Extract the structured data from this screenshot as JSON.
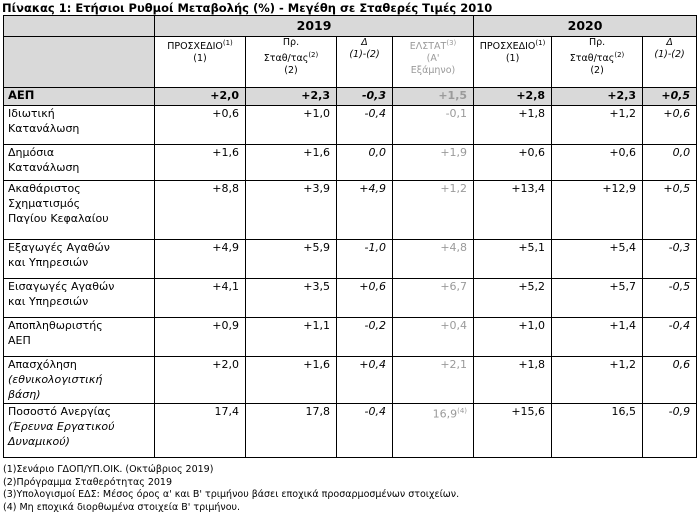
{
  "title": "Πίνακας 1: Ετήσιοι Ρυθμοί Μεταβολής (%) - Μεγέθη σε Σταθερές Τιμές 2010",
  "years": [
    "2019",
    "2020"
  ],
  "subheaders": {
    "plan_2019": {
      "main": "ΠΡΟΣΧΕΔΙΟ",
      "sup": "(1)",
      "line2": "(1)"
    },
    "stab_2019": {
      "line1": "Πρ.",
      "main": "Σταθ/τας",
      "sup": "(2)",
      "line3": "(2)"
    },
    "delta_2019": {
      "line1": "Δ",
      "line2": "(1)-(2)"
    },
    "elstat_2019": {
      "main": "ΕΛΣΤΑΤ",
      "sup": "(3)",
      "line2": "(Α'",
      "line3": "Εξάμηνο)"
    },
    "plan_2020": {
      "main": "ΠΡΟΣΧΕΔΙΟ",
      "sup": "(1)",
      "line2": "(1)"
    },
    "stab_2020": {
      "line1": "Πρ.",
      "main": "Σταθ/τας",
      "sup": "(2)",
      "line3": "(2)"
    },
    "delta_2020": {
      "line1": "Δ",
      "line2": "(1)-(2)"
    }
  },
  "rows": [
    {
      "label": [
        "ΑΕΠ"
      ],
      "values": [
        "+2,0",
        "+2,3",
        "-0,3",
        "+1,5",
        "+2,8",
        "+2,3",
        "+0,5"
      ]
    },
    {
      "label": [
        "Ιδιωτική",
        "Κατανάλωση"
      ],
      "values": [
        "+0,6",
        "+1,0",
        "-0,4",
        "-0,1",
        "+1,8",
        "+1,2",
        "+0,6"
      ]
    },
    {
      "label": [
        "Δημόσια",
        "Κατανάλωση"
      ],
      "values": [
        "+1,6",
        "+1,6",
        "0,0",
        "+1,9",
        "+0,6",
        "+0,6",
        "0,0"
      ]
    },
    {
      "label": [
        "Ακαθάριστος",
        "Σχηματισμός",
        "Παγίου Κεφαλαίου"
      ],
      "values": [
        "+8,8",
        "+3,9",
        "+4,9",
        "+1,2",
        "+13,4",
        "+12,9",
        "+0,5"
      ]
    },
    {
      "label": [
        "Εξαγωγές Αγαθών",
        "και Υπηρεσιών"
      ],
      "values": [
        "+4,9",
        "+5,9",
        "-1,0",
        "+4,8",
        "+5,1",
        "+5,4",
        "-0,3"
      ]
    },
    {
      "label": [
        "Εισαγωγές Αγαθών",
        "και Υπηρεσιών"
      ],
      "values": [
        "+4,1",
        "+3,5",
        "+0,6",
        "+6,7",
        "+5,2",
        "+5,7",
        "-0,5"
      ]
    },
    {
      "label": [
        "Αποπληθωριστής",
        "ΑΕΠ"
      ],
      "values": [
        "+0,9",
        "+1,1",
        "-0,2",
        "+0,4",
        "+1,0",
        "+1,4",
        "-0,4"
      ]
    },
    {
      "label": [
        "Απασχόληση"
      ],
      "label_sub": [
        "(εθνικολογιστική",
        "βάση)"
      ],
      "values": [
        "+2,0",
        "+1,6",
        "+0,4",
        "+2,1",
        "+1,8",
        "+1,2",
        "0,6"
      ]
    },
    {
      "label": [
        "Ποσοστό Ανεργίας"
      ],
      "label_sub": [
        "(Έρευνα Εργατικού",
        "Δυναμικού)"
      ],
      "values": [
        "17,4",
        "17,8",
        "-0,4",
        "16,9",
        "+15,6",
        "16,5",
        "-0,9"
      ],
      "elstat_sup": "(4)"
    }
  ],
  "footnotes": [
    "(1)Σενάριο ΓΔΟΠ/ΥΠ.ΟΙΚ. (Οκτώβριος 2019)",
    "(2)Πρόγραμμα Σταθερότητας 2019",
    "(3)Υπολογισμοί ΕΔΣ: Μέσος όρος α' και Β' τριμήνου βάσει εποχικά προσαρμοσμένων στοιχείων.",
    "(4) Μη εποχικά διορθωμένα στοιχεία Β' τριμήνου."
  ],
  "colors": {
    "header_bg": "#d9d9d9",
    "elstat_text": "#9a9a9a",
    "border": "#000000"
  }
}
